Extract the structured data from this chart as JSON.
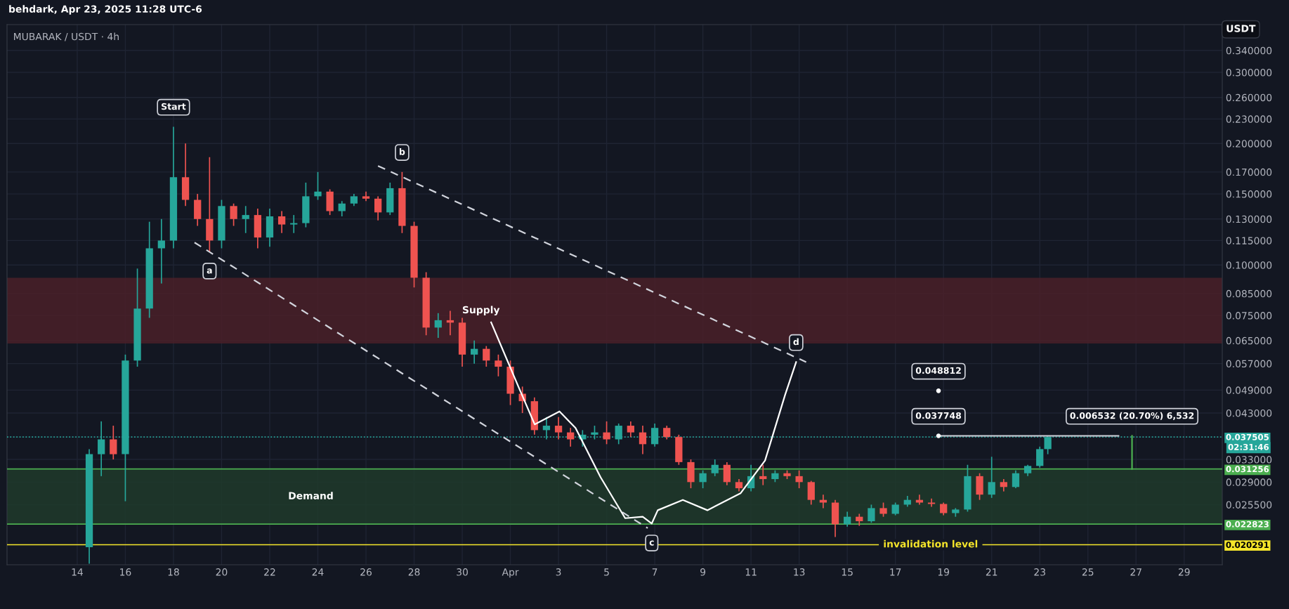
{
  "chart_data": {
    "type": "candlestick",
    "title": "behdark, Apr 23, 2025 11:28 UTC-6",
    "subtitle": "MUBARAK / USDT · 4h",
    "ylabel": "USDT",
    "x": [
      "2025-03-14T12:00",
      "2025-03-15T00:00",
      "2025-03-15T12:00",
      "2025-03-16T00:00",
      "2025-03-16T12:00",
      "2025-03-17T00:00",
      "2025-03-17T12:00",
      "2025-03-18T00:00",
      "2025-03-18T12:00",
      "2025-03-19T00:00",
      "2025-03-19T12:00",
      "2025-03-20T00:00",
      "2025-03-20T12:00",
      "2025-03-21T00:00",
      "2025-03-21T12:00",
      "2025-03-22T00:00",
      "2025-03-22T12:00",
      "2025-03-23T00:00",
      "2025-03-23T12:00",
      "2025-03-24T00:00",
      "2025-03-24T12:00",
      "2025-03-25T00:00",
      "2025-03-25T12:00",
      "2025-03-26T00:00",
      "2025-03-26T12:00",
      "2025-03-27T00:00",
      "2025-03-27T12:00",
      "2025-03-28T00:00",
      "2025-03-28T12:00",
      "2025-03-29T00:00",
      "2025-03-29T12:00",
      "2025-03-30T00:00",
      "2025-03-30T12:00",
      "2025-03-31T00:00",
      "2025-03-31T12:00",
      "2025-04-01T00:00",
      "2025-04-01T12:00",
      "2025-04-02T00:00",
      "2025-04-02T12:00",
      "2025-04-03T00:00",
      "2025-04-03T12:00",
      "2025-04-04T00:00",
      "2025-04-04T12:00",
      "2025-04-05T00:00",
      "2025-04-05T12:00",
      "2025-04-06T00:00",
      "2025-04-06T12:00",
      "2025-04-07T00:00",
      "2025-04-07T12:00",
      "2025-04-08T00:00",
      "2025-04-08T12:00",
      "2025-04-09T00:00",
      "2025-04-09T12:00",
      "2025-04-10T00:00",
      "2025-04-10T12:00",
      "2025-04-11T00:00",
      "2025-04-11T12:00",
      "2025-04-12T00:00",
      "2025-04-12T12:00",
      "2025-04-13T00:00",
      "2025-04-13T12:00",
      "2025-04-14T00:00",
      "2025-04-14T12:00",
      "2025-04-15T00:00",
      "2025-04-15T12:00",
      "2025-04-16T00:00",
      "2025-04-16T12:00",
      "2025-04-17T00:00",
      "2025-04-17T12:00",
      "2025-04-18T00:00",
      "2025-04-18T12:00",
      "2025-04-19T00:00",
      "2025-04-19T12:00",
      "2025-04-20T00:00",
      "2025-04-20T12:00",
      "2025-04-21T00:00",
      "2025-04-21T12:00",
      "2025-04-22T00:00",
      "2025-04-22T12:00",
      "2025-04-23T00:00",
      "2025-04-23T08:00"
    ],
    "ohlc": [
      [
        0.02,
        0.035,
        0.0182,
        0.034
      ],
      [
        0.034,
        0.041,
        0.03,
        0.037
      ],
      [
        0.037,
        0.04,
        0.033,
        0.034
      ],
      [
        0.034,
        0.06,
        0.026,
        0.058
      ],
      [
        0.058,
        0.098,
        0.056,
        0.078
      ],
      [
        0.078,
        0.128,
        0.074,
        0.11
      ],
      [
        0.11,
        0.13,
        0.09,
        0.115
      ],
      [
        0.115,
        0.22,
        0.11,
        0.165
      ],
      [
        0.165,
        0.2,
        0.14,
        0.145
      ],
      [
        0.145,
        0.15,
        0.125,
        0.13
      ],
      [
        0.13,
        0.185,
        0.108,
        0.115
      ],
      [
        0.115,
        0.145,
        0.11,
        0.14
      ],
      [
        0.14,
        0.142,
        0.125,
        0.13
      ],
      [
        0.13,
        0.14,
        0.12,
        0.133
      ],
      [
        0.133,
        0.138,
        0.11,
        0.117
      ],
      [
        0.117,
        0.138,
        0.111,
        0.132
      ],
      [
        0.132,
        0.136,
        0.12,
        0.126
      ],
      [
        0.126,
        0.133,
        0.12,
        0.127
      ],
      [
        0.127,
        0.16,
        0.124,
        0.148
      ],
      [
        0.148,
        0.17,
        0.145,
        0.152
      ],
      [
        0.152,
        0.154,
        0.133,
        0.136
      ],
      [
        0.136,
        0.144,
        0.132,
        0.142
      ],
      [
        0.142,
        0.15,
        0.14,
        0.148
      ],
      [
        0.148,
        0.152,
        0.144,
        0.146
      ],
      [
        0.146,
        0.148,
        0.129,
        0.135
      ],
      [
        0.135,
        0.16,
        0.133,
        0.155
      ],
      [
        0.155,
        0.17,
        0.12,
        0.125
      ],
      [
        0.125,
        0.128,
        0.088,
        0.093
      ],
      [
        0.093,
        0.096,
        0.067,
        0.07
      ],
      [
        0.07,
        0.076,
        0.066,
        0.073
      ],
      [
        0.073,
        0.077,
        0.067,
        0.072
      ],
      [
        0.072,
        0.074,
        0.056,
        0.06
      ],
      [
        0.06,
        0.065,
        0.057,
        0.062
      ],
      [
        0.062,
        0.063,
        0.056,
        0.058
      ],
      [
        0.058,
        0.06,
        0.053,
        0.056
      ],
      [
        0.056,
        0.058,
        0.045,
        0.048
      ],
      [
        0.048,
        0.05,
        0.043,
        0.046
      ],
      [
        0.046,
        0.047,
        0.038,
        0.039
      ],
      [
        0.039,
        0.042,
        0.037,
        0.04
      ],
      [
        0.04,
        0.042,
        0.037,
        0.0385
      ],
      [
        0.0385,
        0.0395,
        0.0355,
        0.037
      ],
      [
        0.037,
        0.039,
        0.0355,
        0.038
      ],
      [
        0.038,
        0.04,
        0.037,
        0.0385
      ],
      [
        0.0385,
        0.041,
        0.036,
        0.037
      ],
      [
        0.037,
        0.0405,
        0.036,
        0.04
      ],
      [
        0.04,
        0.041,
        0.0375,
        0.0385
      ],
      [
        0.0385,
        0.04,
        0.034,
        0.036
      ],
      [
        0.036,
        0.0405,
        0.0355,
        0.0395
      ],
      [
        0.0395,
        0.04,
        0.037,
        0.0375
      ],
      [
        0.0375,
        0.038,
        0.032,
        0.0325
      ],
      [
        0.0325,
        0.033,
        0.028,
        0.029
      ],
      [
        0.029,
        0.031,
        0.028,
        0.0305
      ],
      [
        0.0305,
        0.033,
        0.03,
        0.032
      ],
      [
        0.032,
        0.0325,
        0.0285,
        0.029
      ],
      [
        0.029,
        0.0295,
        0.0275,
        0.028
      ],
      [
        0.028,
        0.032,
        0.0275,
        0.03
      ],
      [
        0.03,
        0.032,
        0.0285,
        0.0295
      ],
      [
        0.0295,
        0.031,
        0.029,
        0.0305
      ],
      [
        0.0305,
        0.031,
        0.0295,
        0.03
      ],
      [
        0.03,
        0.031,
        0.028,
        0.029
      ],
      [
        0.029,
        0.0292,
        0.0255,
        0.0262
      ],
      [
        0.0262,
        0.027,
        0.025,
        0.0258
      ],
      [
        0.0258,
        0.0262,
        0.0212,
        0.0228
      ],
      [
        0.0228,
        0.0245,
        0.0225,
        0.0238
      ],
      [
        0.0238,
        0.0242,
        0.0226,
        0.0232
      ],
      [
        0.0232,
        0.0255,
        0.023,
        0.025
      ],
      [
        0.025,
        0.0258,
        0.0238,
        0.0242
      ],
      [
        0.0242,
        0.0258,
        0.024,
        0.0255
      ],
      [
        0.0255,
        0.0268,
        0.0252,
        0.0262
      ],
      [
        0.0262,
        0.027,
        0.0255,
        0.0258
      ],
      [
        0.0258,
        0.0264,
        0.0252,
        0.0256
      ],
      [
        0.0256,
        0.0258,
        0.024,
        0.0243
      ],
      [
        0.0243,
        0.025,
        0.0238,
        0.0248
      ],
      [
        0.0248,
        0.032,
        0.0245,
        0.03
      ],
      [
        0.03,
        0.0305,
        0.0262,
        0.027
      ],
      [
        0.027,
        0.0335,
        0.0265,
        0.029
      ],
      [
        0.029,
        0.0295,
        0.0275,
        0.0282
      ],
      [
        0.0282,
        0.031,
        0.028,
        0.0305
      ],
      [
        0.0305,
        0.032,
        0.03,
        0.0318
      ],
      [
        0.0318,
        0.0355,
        0.0315,
        0.035
      ],
      [
        0.035,
        0.0378,
        0.034,
        0.0375
      ]
    ],
    "series": [
      {
        "type": "line",
        "color": "#d1d4dc",
        "line_style": "dashed",
        "x": [
          "2025-03-26T12:00",
          "2025-04-13T07:00"
        ],
        "values": [
          0.176,
          0.0575
        ]
      },
      {
        "type": "line",
        "color": "#d1d4dc",
        "line_style": "dashed",
        "x": [
          "2025-03-18T21:00",
          "2025-04-06T17:00"
        ],
        "values": [
          0.1137,
          0.0223
        ]
      },
      {
        "type": "line",
        "color": "#ffffff",
        "line_style": "solid",
        "x": [
          "2025-03-31T04:48",
          "2025-04-01T08:00",
          "2025-04-02T00:15",
          "2025-04-03T01:00",
          "2025-04-03T17:00",
          "2025-04-04T18:00",
          "2025-04-05T18:30",
          "2025-04-06T12:00",
          "2025-04-06T21:00",
          "2025-04-07T03:00",
          "2025-04-08T04:00",
          "2025-04-09T04:30",
          "2025-04-10T13:30",
          "2025-04-11T14:00",
          "2025-04-12T10:00",
          "2025-04-12T21:00"
        ],
        "values": [
          0.0721,
          0.05,
          0.0403,
          0.0434,
          0.0395,
          0.0298,
          0.0236,
          0.0238,
          0.0229,
          0.0247,
          0.0262,
          0.0247,
          0.0272,
          0.0328,
          0.0477,
          0.0575
        ]
      },
      {
        "type": "line",
        "color": "#d1d4dc",
        "line_style": "solid",
        "x": [
          "2025-04-18T19:00",
          "2025-04-26T06:30"
        ],
        "values": [
          0.037748,
          0.037748
        ]
      },
      {
        "type": "line",
        "color": "#4caf50",
        "line_style": "solid",
        "x": [
          "2025-04-26T20:00",
          "2025-04-26T20:00"
        ],
        "values": [
          0.031256,
          0.037748
        ]
      },
      {
        "type": "scatter",
        "color": "#ffffff",
        "marker": "circle",
        "x": [
          "2025-04-18T19:00",
          "2025-04-18T19:00"
        ],
        "values": [
          0.048812,
          0.037748
        ]
      }
    ],
    "ref_lines": [
      {
        "axis": "y",
        "value": 0.031256,
        "color": "#4caf50",
        "line_style": "solid"
      },
      {
        "axis": "y",
        "value": 0.022823,
        "color": "#4caf50",
        "line_style": "solid"
      },
      {
        "axis": "y",
        "value": 0.020291,
        "label": "invalidation level",
        "color": "#f5e52a",
        "line_style": "solid"
      },
      {
        "axis": "y",
        "value": 0.037505,
        "color": "#26a69a",
        "line_style": "dotted"
      }
    ],
    "bands": [
      {
        "axis": "y",
        "from": 0.022823,
        "to": 0.031256,
        "label": "Demand",
        "color": "#1f3a2b"
      },
      {
        "axis": "y",
        "from": 0.0641,
        "to": 0.0927,
        "label": "Supply",
        "color": "#4a2029"
      }
    ],
    "annotations": [
      {
        "text": "Start",
        "x": "2025-03-18T00:00",
        "y": 0.22
      },
      {
        "text": "a",
        "x": "2025-03-19T12:00",
        "y": 0.108
      },
      {
        "text": "b",
        "x": "2025-03-27T12:00",
        "y": 0.17
      },
      {
        "text": "c",
        "x": "2025-04-06T21:00",
        "y": 0.0229
      },
      {
        "text": "d",
        "x": "2025-04-12T21:00",
        "y": 0.0575
      },
      {
        "text": "0.048812",
        "x": "2025-04-18T19:00",
        "y": 0.048812
      },
      {
        "text": "0.037748",
        "x": "2025-04-18T19:00",
        "y": 0.037748
      },
      {
        "text": "0.006532 (20.70%) 6,532",
        "x": "2025-04-26T20:00",
        "y": 0.037748
      },
      "02:31:46"
    ],
    "xlim": [
      "2025-03-11T02:00",
      "2025-04-30T14:00"
    ],
    "xticks": [
      {
        "value": "2025-03-14",
        "label": "14"
      },
      {
        "value": "2025-03-16",
        "label": "16"
      },
      {
        "value": "2025-03-18",
        "label": "18"
      },
      {
        "value": "2025-03-20",
        "label": "20"
      },
      {
        "value": "2025-03-22",
        "label": "22"
      },
      {
        "value": "2025-03-24",
        "label": "24"
      },
      {
        "value": "2025-03-26",
        "label": "26"
      },
      {
        "value": "2025-03-28",
        "label": "28"
      },
      {
        "value": "2025-03-30",
        "label": "30"
      },
      {
        "value": "2025-04-01",
        "label": "Apr"
      },
      {
        "value": "2025-04-03",
        "label": "3"
      },
      {
        "value": "2025-04-05",
        "label": "5"
      },
      {
        "value": "2025-04-07",
        "label": "7"
      },
      {
        "value": "2025-04-09",
        "label": "9"
      },
      {
        "value": "2025-04-11",
        "label": "11"
      },
      {
        "value": "2025-04-13",
        "label": "13"
      },
      {
        "value": "2025-04-15",
        "label": "15"
      },
      {
        "value": "2025-04-17",
        "label": "17"
      },
      {
        "value": "2025-04-19",
        "label": "19"
      },
      {
        "value": "2025-04-21",
        "label": "21"
      },
      {
        "value": "2025-04-23",
        "label": "23"
      },
      {
        "value": "2025-04-25",
        "label": "25"
      },
      {
        "value": "2025-04-27",
        "label": "27"
      },
      {
        "value": "2025-04-29",
        "label": "29"
      }
    ],
    "ylim": [
      0.0181,
      0.394
    ],
    "log": true,
    "yticks": [
      {
        "value": 0.34,
        "label": "0.340000"
      },
      {
        "value": 0.3,
        "label": "0.300000"
      },
      {
        "value": 0.26,
        "label": "0.260000"
      },
      {
        "value": 0.23,
        "label": "0.230000"
      },
      {
        "value": 0.2,
        "label": "0.200000"
      },
      {
        "value": 0.17,
        "label": "0.170000"
      },
      {
        "value": 0.15,
        "label": "0.150000"
      },
      {
        "value": 0.13,
        "label": "0.130000"
      },
      {
        "value": 0.115,
        "label": "0.115000"
      },
      {
        "value": 0.1,
        "label": "0.100000"
      },
      {
        "value": 0.085,
        "label": "0.085000"
      },
      {
        "value": 0.075,
        "label": "0.075000"
      },
      {
        "value": 0.065,
        "label": "0.065000"
      },
      {
        "value": 0.057,
        "label": "0.057000"
      },
      {
        "value": 0.049,
        "label": "0.049000"
      },
      {
        "value": 0.043,
        "label": "0.043000"
      },
      {
        "value": 0.033,
        "label": "0.033000"
      },
      {
        "value": 0.029,
        "label": "0.029000"
      },
      {
        "value": 0.0255,
        "label": "0.025500"
      },
      {
        "value": 0.037505,
        "label": "0.037505"
      },
      {
        "value": 0.031256,
        "label": "0.031256"
      },
      {
        "value": 0.022823,
        "label": "0.022823"
      },
      {
        "value": 0.020291,
        "label": "0.020291"
      }
    ],
    "grid": true,
    "legend": false
  }
}
